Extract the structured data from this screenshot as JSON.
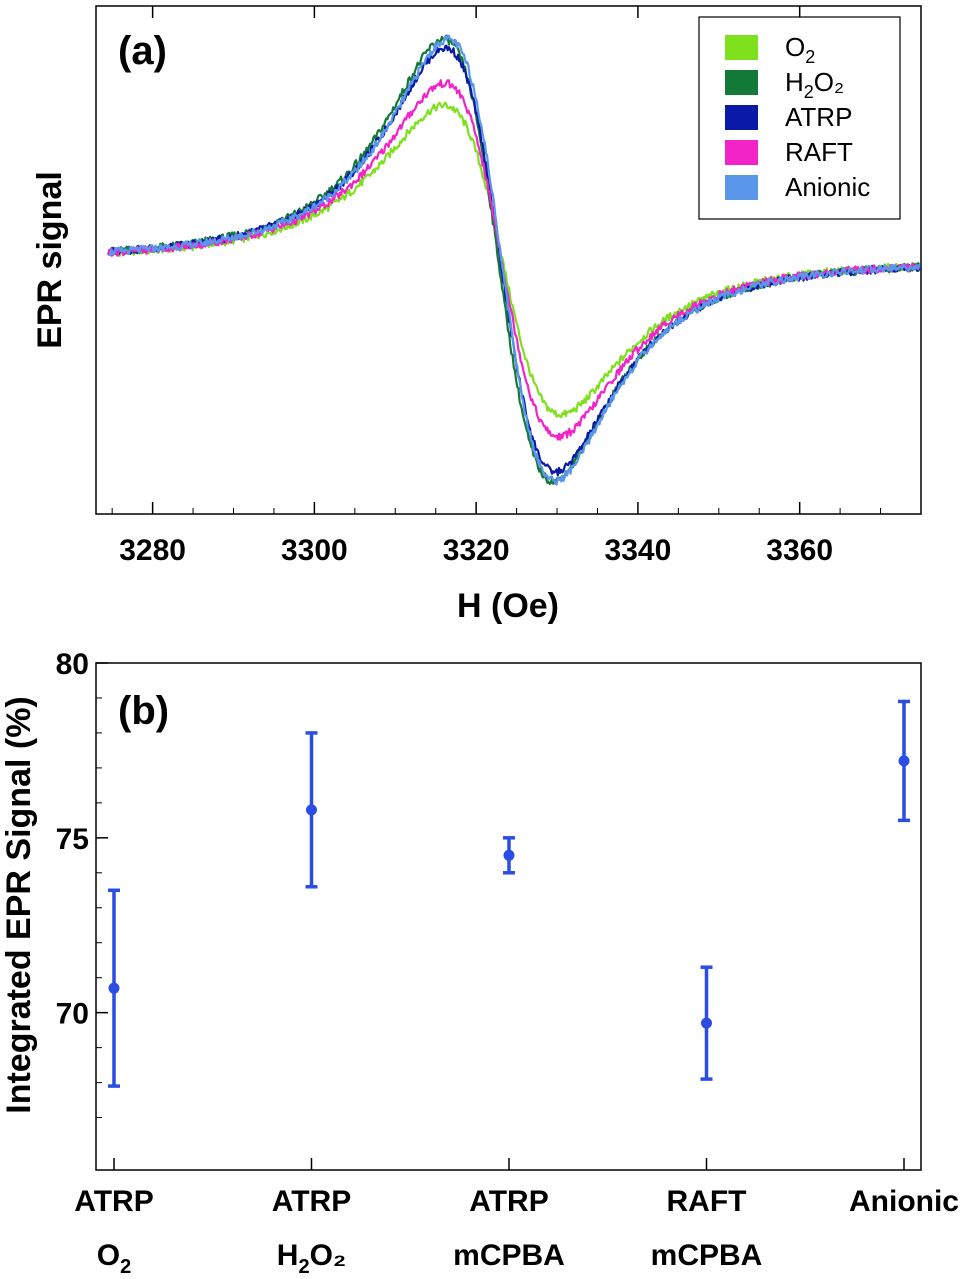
{
  "chart_data": [
    {
      "panel": "(a)",
      "type": "line",
      "xlabel": "H (Oe)",
      "ylabel": "EPR signal",
      "xlim": [
        3273,
        3375
      ],
      "xticks": [
        3280,
        3300,
        3320,
        3340,
        3360
      ],
      "ylim": [
        -1.15,
        1.15
      ],
      "yticks_shown": false,
      "grid": false,
      "legend_position": "top-right",
      "series": [
        {
          "name": "O",
          "sub": "2",
          "name_end": "",
          "color": "#7fe01e",
          "amplitude": 0.7,
          "peak_x": 3316,
          "trough_x": 3330.5
        },
        {
          "name": "H",
          "sub": "2",
          "name_end": "O₂",
          "color": "#127a36",
          "amplitude": 1.0,
          "peak_x": 3316,
          "trough_x": 3329.5
        },
        {
          "name": "ATRP",
          "sub": "",
          "name_end": "",
          "color": "#0a1aa8",
          "amplitude": 0.96,
          "peak_x": 3316.2,
          "trough_x": 3329.8
        },
        {
          "name": "RAFT",
          "sub": "",
          "name_end": "",
          "color": "#f224c8",
          "amplitude": 0.8,
          "peak_x": 3316.1,
          "trough_x": 3330.2
        },
        {
          "name": "Anionic",
          "sub": "",
          "name_end": "",
          "color": "#5a96ea",
          "amplitude": 1.0,
          "peak_x": 3316.5,
          "trough_x": 3329.8
        }
      ]
    },
    {
      "panel": "(b)",
      "type": "scatter",
      "xlabel": "",
      "ylabel": "Integrated EPR Signal (%)",
      "ylim": [
        65.5,
        80
      ],
      "yticks": [
        70,
        75,
        80
      ],
      "grid": false,
      "color": "#2a4de6",
      "categories": [
        {
          "line1": "ATRP",
          "line2": "O",
          "line2_sub": "2",
          "line2_end": ""
        },
        {
          "line1": "ATRP",
          "line2": "H",
          "line2_sub": "2",
          "line2_end": "O₂"
        },
        {
          "line1": "ATRP",
          "line2": "mCPBA",
          "line2_sub": "",
          "line2_end": ""
        },
        {
          "line1": "RAFT",
          "line2": "mCPBA",
          "line2_sub": "",
          "line2_end": ""
        },
        {
          "line1": "Anionic",
          "line2": "",
          "line2_sub": "",
          "line2_end": ""
        }
      ],
      "values": [
        70.7,
        75.8,
        74.5,
        69.7,
        77.2
      ],
      "error_low": [
        67.9,
        73.6,
        74.0,
        68.1,
        75.5
      ],
      "error_high": [
        73.5,
        78.0,
        75.0,
        71.3,
        78.9
      ]
    }
  ]
}
